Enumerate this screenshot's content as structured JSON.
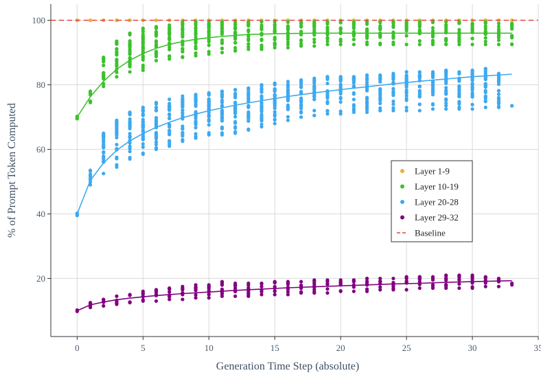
{
  "chart_data": {
    "type": "scatter",
    "title": "",
    "xlabel": "Generation Time Step (absolute)",
    "ylabel": "% of Prompt Token Computed",
    "xlim": [
      -2,
      35
    ],
    "ylim": [
      2,
      105
    ],
    "x_ticks": [
      "0",
      "5",
      "10",
      "15",
      "20",
      "25",
      "30",
      "35"
    ],
    "y_ticks": [
      "20",
      "40",
      "60",
      "80",
      "100"
    ],
    "grid": true,
    "legend_position": "center-right",
    "legend": [
      "Layer 1-9",
      "Layer 10-19",
      "Layer 20-28",
      "Layer 29-32",
      "Baseline"
    ],
    "series": [
      {
        "name": "Layer 1-9",
        "color": "#e8b430",
        "kind": "scatter",
        "points": [
          {
            "x": 0,
            "min": 100,
            "max": 100
          },
          {
            "x": 1,
            "min": 100,
            "max": 100
          },
          {
            "x": 2,
            "min": 100,
            "max": 100
          },
          {
            "x": 3,
            "min": 100,
            "max": 100
          },
          {
            "x": 4,
            "min": 100,
            "max": 100
          },
          {
            "x": 5,
            "min": 100,
            "max": 100
          },
          {
            "x": 6,
            "min": 100,
            "max": 100
          },
          {
            "x": 7,
            "min": 100,
            "max": 100
          },
          {
            "x": 8,
            "min": 100,
            "max": 100
          },
          {
            "x": 9,
            "min": 100,
            "max": 100
          },
          {
            "x": 10,
            "min": 100,
            "max": 100
          },
          {
            "x": 11,
            "min": 100,
            "max": 100
          },
          {
            "x": 12,
            "min": 100,
            "max": 100
          },
          {
            "x": 13,
            "min": 100,
            "max": 100
          },
          {
            "x": 14,
            "min": 100,
            "max": 100
          },
          {
            "x": 15,
            "min": 100,
            "max": 100
          },
          {
            "x": 16,
            "min": 100,
            "max": 100
          },
          {
            "x": 17,
            "min": 100,
            "max": 100
          },
          {
            "x": 18,
            "min": 100,
            "max": 100
          },
          {
            "x": 19,
            "min": 100,
            "max": 100
          },
          {
            "x": 20,
            "min": 100,
            "max": 100
          },
          {
            "x": 21,
            "min": 100,
            "max": 100
          },
          {
            "x": 22,
            "min": 100,
            "max": 100
          },
          {
            "x": 23,
            "min": 100,
            "max": 100
          },
          {
            "x": 24,
            "min": 100,
            "max": 100
          },
          {
            "x": 25,
            "min": 100,
            "max": 100
          },
          {
            "x": 26,
            "min": 100,
            "max": 100
          },
          {
            "x": 27,
            "min": 100,
            "max": 100
          },
          {
            "x": 28,
            "min": 100,
            "max": 100
          },
          {
            "x": 29,
            "min": 100,
            "max": 100
          },
          {
            "x": 30,
            "min": 100,
            "max": 100
          },
          {
            "x": 31,
            "min": 100,
            "max": 100
          },
          {
            "x": 32,
            "min": 100,
            "max": 100
          },
          {
            "x": 33,
            "min": 100,
            "max": 100
          }
        ]
      },
      {
        "name": "Layer 10-19",
        "color": "#3cc12c",
        "kind": "scatter",
        "points": [
          {
            "x": 0,
            "min": 69.5,
            "max": 70.2
          },
          {
            "x": 1,
            "min": 74.5,
            "max": 78.0
          },
          {
            "x": 2,
            "min": 79.5,
            "max": 88.5
          },
          {
            "x": 3,
            "min": 82.5,
            "max": 93.5
          },
          {
            "x": 4,
            "min": 84.0,
            "max": 96.0
          },
          {
            "x": 5,
            "min": 84.5,
            "max": 97.5
          },
          {
            "x": 6,
            "min": 87.5,
            "max": 98.0
          },
          {
            "x": 7,
            "min": 88.0,
            "max": 98.5
          },
          {
            "x": 8,
            "min": 88.5,
            "max": 99.5
          },
          {
            "x": 9,
            "min": 89.0,
            "max": 99.5
          },
          {
            "x": 10,
            "min": 89.5,
            "max": 99.5
          },
          {
            "x": 11,
            "min": 90.0,
            "max": 99.5
          },
          {
            "x": 12,
            "min": 90.5,
            "max": 99.5
          },
          {
            "x": 13,
            "min": 91.0,
            "max": 99.5
          },
          {
            "x": 14,
            "min": 91.0,
            "max": 99.5
          },
          {
            "x": 15,
            "min": 91.5,
            "max": 99.5
          },
          {
            "x": 16,
            "min": 91.5,
            "max": 99.5
          },
          {
            "x": 17,
            "min": 92.0,
            "max": 99.5
          },
          {
            "x": 18,
            "min": 92.0,
            "max": 99.5
          },
          {
            "x": 19,
            "min": 92.5,
            "max": 99.5
          },
          {
            "x": 20,
            "min": 92.5,
            "max": 99.5
          },
          {
            "x": 21,
            "min": 92.5,
            "max": 99.5
          },
          {
            "x": 22,
            "min": 92.5,
            "max": 99.5
          },
          {
            "x": 23,
            "min": 92.5,
            "max": 99.5
          },
          {
            "x": 24,
            "min": 92.5,
            "max": 99.5
          },
          {
            "x": 25,
            "min": 92.5,
            "max": 99.5
          },
          {
            "x": 26,
            "min": 92.5,
            "max": 99.5
          },
          {
            "x": 27,
            "min": 92.5,
            "max": 99.5
          },
          {
            "x": 28,
            "min": 92.5,
            "max": 99.5
          },
          {
            "x": 29,
            "min": 92.5,
            "max": 99.5
          },
          {
            "x": 30,
            "min": 92.5,
            "max": 99.0
          },
          {
            "x": 31,
            "min": 92.5,
            "max": 99.5
          },
          {
            "x": 32,
            "min": 92.5,
            "max": 99.0
          },
          {
            "x": 33,
            "min": 92.5,
            "max": 99.0
          }
        ]
      },
      {
        "name": "Layer 20-28",
        "color": "#3da9f0",
        "kind": "scatter",
        "points": [
          {
            "x": 0,
            "min": 39.5,
            "max": 40.2
          },
          {
            "x": 1,
            "min": 49.0,
            "max": 53.5
          },
          {
            "x": 2,
            "min": 52.5,
            "max": 65.0
          },
          {
            "x": 3,
            "min": 54.5,
            "max": 69.0
          },
          {
            "x": 4,
            "min": 57.0,
            "max": 71.5
          },
          {
            "x": 5,
            "min": 58.5,
            "max": 73.0
          },
          {
            "x": 6,
            "min": 60.0,
            "max": 74.5
          },
          {
            "x": 7,
            "min": 61.0,
            "max": 75.5
          },
          {
            "x": 8,
            "min": 62.5,
            "max": 76.5
          },
          {
            "x": 9,
            "min": 63.5,
            "max": 77.0
          },
          {
            "x": 10,
            "min": 64.5,
            "max": 77.5
          },
          {
            "x": 11,
            "min": 64.5,
            "max": 78.0
          },
          {
            "x": 12,
            "min": 65.0,
            "max": 78.5
          },
          {
            "x": 13,
            "min": 66.0,
            "max": 79.0
          },
          {
            "x": 14,
            "min": 67.0,
            "max": 80.0
          },
          {
            "x": 15,
            "min": 68.0,
            "max": 80.5
          },
          {
            "x": 16,
            "min": 69.0,
            "max": 81.0
          },
          {
            "x": 17,
            "min": 70.0,
            "max": 81.5
          },
          {
            "x": 18,
            "min": 70.5,
            "max": 82.0
          },
          {
            "x": 19,
            "min": 71.0,
            "max": 82.5
          },
          {
            "x": 20,
            "min": 71.0,
            "max": 82.5
          },
          {
            "x": 21,
            "min": 71.5,
            "max": 82.5
          },
          {
            "x": 22,
            "min": 71.5,
            "max": 83.0
          },
          {
            "x": 23,
            "min": 72.0,
            "max": 83.0
          },
          {
            "x": 24,
            "min": 72.0,
            "max": 83.5
          },
          {
            "x": 25,
            "min": 72.0,
            "max": 84.0
          },
          {
            "x": 26,
            "min": 72.0,
            "max": 84.0
          },
          {
            "x": 27,
            "min": 72.5,
            "max": 84.0
          },
          {
            "x": 28,
            "min": 72.5,
            "max": 84.5
          },
          {
            "x": 29,
            "min": 72.5,
            "max": 84.0
          },
          {
            "x": 30,
            "min": 72.5,
            "max": 84.5
          },
          {
            "x": 31,
            "min": 73.0,
            "max": 85.0
          },
          {
            "x": 32,
            "min": 73.0,
            "max": 83.5
          },
          {
            "x": 33,
            "min": 73.5,
            "max": 73.5
          }
        ]
      },
      {
        "name": "Layer 29-32",
        "color": "#800080",
        "kind": "scatter",
        "points": [
          {
            "x": 0,
            "min": 9.8,
            "max": 10.2
          },
          {
            "x": 1,
            "min": 11.0,
            "max": 12.5
          },
          {
            "x": 2,
            "min": 11.5,
            "max": 13.5
          },
          {
            "x": 3,
            "min": 12.0,
            "max": 14.5
          },
          {
            "x": 4,
            "min": 12.5,
            "max": 15.0
          },
          {
            "x": 5,
            "min": 13.0,
            "max": 16.0
          },
          {
            "x": 6,
            "min": 13.0,
            "max": 16.5
          },
          {
            "x": 7,
            "min": 13.5,
            "max": 17.0
          },
          {
            "x": 8,
            "min": 13.5,
            "max": 17.5
          },
          {
            "x": 9,
            "min": 14.0,
            "max": 18.0
          },
          {
            "x": 10,
            "min": 14.0,
            "max": 18.0
          },
          {
            "x": 11,
            "min": 14.5,
            "max": 19.0
          },
          {
            "x": 12,
            "min": 14.5,
            "max": 18.5
          },
          {
            "x": 13,
            "min": 14.5,
            "max": 18.5
          },
          {
            "x": 14,
            "min": 15.0,
            "max": 18.5
          },
          {
            "x": 15,
            "min": 15.0,
            "max": 19.0
          },
          {
            "x": 16,
            "min": 15.0,
            "max": 19.0
          },
          {
            "x": 17,
            "min": 15.5,
            "max": 19.0
          },
          {
            "x": 18,
            "min": 15.5,
            "max": 19.5
          },
          {
            "x": 19,
            "min": 15.5,
            "max": 19.5
          },
          {
            "x": 20,
            "min": 16.0,
            "max": 19.5
          },
          {
            "x": 21,
            "min": 16.0,
            "max": 19.5
          },
          {
            "x": 22,
            "min": 16.0,
            "max": 20.0
          },
          {
            "x": 23,
            "min": 16.5,
            "max": 20.0
          },
          {
            "x": 24,
            "min": 16.5,
            "max": 20.0
          },
          {
            "x": 25,
            "min": 16.5,
            "max": 20.5
          },
          {
            "x": 26,
            "min": 17.0,
            "max": 20.5
          },
          {
            "x": 27,
            "min": 17.0,
            "max": 20.5
          },
          {
            "x": 28,
            "min": 17.0,
            "max": 21.0
          },
          {
            "x": 29,
            "min": 17.0,
            "max": 21.0
          },
          {
            "x": 30,
            "min": 17.0,
            "max": 21.0
          },
          {
            "x": 31,
            "min": 17.5,
            "max": 20.5
          },
          {
            "x": 32,
            "min": 17.5,
            "max": 20.0
          },
          {
            "x": 33,
            "min": 18.0,
            "max": 18.5
          }
        ]
      }
    ],
    "fit_lines": [
      {
        "series": "Layer 10-19",
        "color": "#3cc12c",
        "x": [
          0,
          1,
          2,
          3,
          4,
          5,
          6,
          7,
          8,
          9,
          10,
          11,
          12,
          13,
          14,
          15,
          16,
          18,
          20,
          22,
          25,
          28,
          30,
          33
        ],
        "y": [
          70.0,
          76.3,
          81.1,
          84.8,
          87.6,
          89.7,
          91.3,
          92.5,
          93.4,
          94.1,
          94.6,
          95.0,
          95.3,
          95.6,
          95.7,
          95.8,
          95.9,
          96.0,
          96.0,
          96.0,
          96.0,
          96.0,
          96.0,
          96.0
        ]
      },
      {
        "series": "Layer 20-28",
        "color": "#3da9f0",
        "x": [
          0,
          1,
          2,
          3,
          4,
          5,
          6,
          7,
          8,
          9,
          10,
          12,
          14,
          16,
          18,
          20,
          22,
          24,
          26,
          28,
          30,
          33
        ],
        "y": [
          40.0,
          50.4,
          55.8,
          59.7,
          62.6,
          64.9,
          66.8,
          68.4,
          69.8,
          70.9,
          72.0,
          73.7,
          75.1,
          76.4,
          77.5,
          78.5,
          79.4,
          80.3,
          81.1,
          81.8,
          82.5,
          83.3
        ]
      },
      {
        "series": "Layer 29-32",
        "color": "#800080",
        "x": [
          0,
          1,
          2,
          3,
          4,
          5,
          6,
          7,
          8,
          10,
          12,
          14,
          16,
          18,
          20,
          22,
          24,
          26,
          28,
          30,
          33
        ],
        "y": [
          10.0,
          11.8,
          12.7,
          13.4,
          13.9,
          14.3,
          14.7,
          15.0,
          15.3,
          15.8,
          16.3,
          16.7,
          17.1,
          17.4,
          17.7,
          18.0,
          18.3,
          18.5,
          18.8,
          19.0,
          19.3
        ]
      }
    ],
    "baseline": {
      "name": "Baseline",
      "y": 100,
      "color": "#e8413c"
    }
  }
}
